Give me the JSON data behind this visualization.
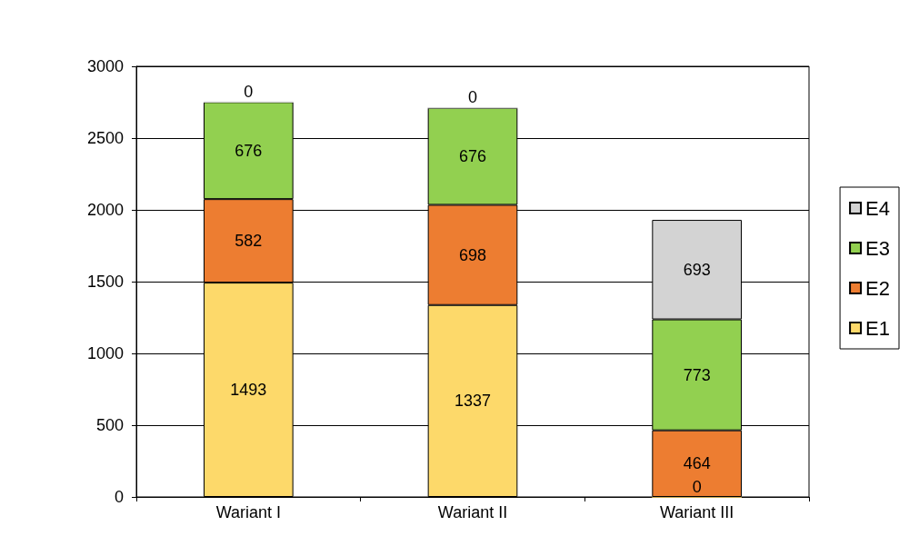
{
  "chart_data": {
    "type": "bar",
    "stacked": true,
    "categories": [
      "Wariant I",
      "Wariant II",
      "Wariant III"
    ],
    "series": [
      {
        "name": "E1",
        "color": "#fdd96a",
        "values": [
          1493,
          1337,
          0
        ]
      },
      {
        "name": "E2",
        "color": "#ed7d31",
        "values": [
          582,
          698,
          464
        ]
      },
      {
        "name": "E3",
        "color": "#92d050",
        "values": [
          676,
          676,
          773
        ]
      },
      {
        "name": "E4",
        "color": "#d3d3d3",
        "values": [
          0,
          0,
          693
        ]
      }
    ],
    "ylim": [
      0,
      3000
    ],
    "yticks": [
      0,
      500,
      1000,
      1500,
      2000,
      2500,
      3000
    ],
    "grid": "y",
    "legend": "right",
    "data_labels": true
  }
}
